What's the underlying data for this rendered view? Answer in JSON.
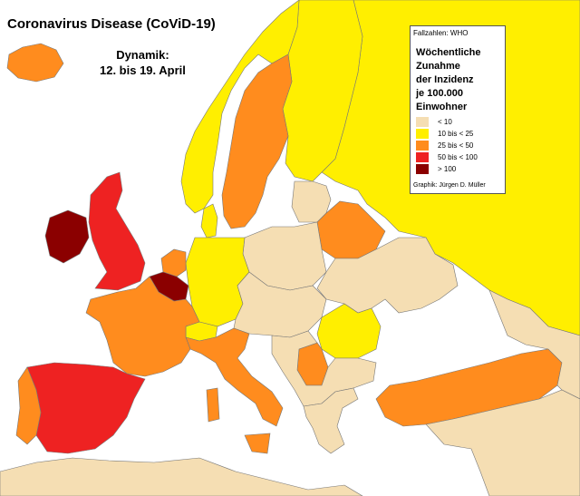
{
  "title": "Coronavirus Disease (CoViD-19)",
  "dynamic_line1": "Dynamik:",
  "dynamic_line2": "12. bis 19. April",
  "legend": {
    "source": "Fallzahlen: WHO",
    "heading": [
      "Wöchentliche",
      "Zunahme",
      "der Inzidenz",
      "je 100.000",
      "Einwohner"
    ],
    "classes": [
      {
        "label": "< 10",
        "color": "#f5deb3"
      },
      {
        "label": "10 bis < 25",
        "color": "#ffef00"
      },
      {
        "label": "25 bis < 50",
        "color": "#ff8c1e"
      },
      {
        "label": "50 bis < 100",
        "color": "#ee2222"
      },
      {
        "label": "> 100",
        "color": "#8b0000"
      }
    ],
    "credit": "Graphik:  Jürgen D. Müller"
  },
  "regions": [
    {
      "name": "iceland",
      "class": 2
    },
    {
      "name": "norway",
      "class": 1
    },
    {
      "name": "sweden",
      "class": 2
    },
    {
      "name": "finland",
      "class": 1
    },
    {
      "name": "russia",
      "class": 1
    },
    {
      "name": "ireland",
      "class": 4
    },
    {
      "name": "united-kingdom",
      "class": 3
    },
    {
      "name": "netherlands",
      "class": 2
    },
    {
      "name": "belgium",
      "class": 4
    },
    {
      "name": "france",
      "class": 2
    },
    {
      "name": "spain",
      "class": 3
    },
    {
      "name": "portugal",
      "class": 2
    },
    {
      "name": "germany",
      "class": 1
    },
    {
      "name": "denmark",
      "class": 1
    },
    {
      "name": "switzerland",
      "class": 1
    },
    {
      "name": "italy",
      "class": 2
    },
    {
      "name": "belarus",
      "class": 2
    },
    {
      "name": "romania",
      "class": 1
    },
    {
      "name": "serbia",
      "class": 2
    },
    {
      "name": "turkey",
      "class": 2
    },
    {
      "name": "poland",
      "class": 0
    },
    {
      "name": "ukraine",
      "class": 0
    },
    {
      "name": "baltics",
      "class": 0
    },
    {
      "name": "central-europe",
      "class": 0
    },
    {
      "name": "balkans",
      "class": 0
    },
    {
      "name": "greece",
      "class": 0
    },
    {
      "name": "north-africa",
      "class": 0
    },
    {
      "name": "caucasus",
      "class": 0
    },
    {
      "name": "middle-east",
      "class": 0
    }
  ]
}
